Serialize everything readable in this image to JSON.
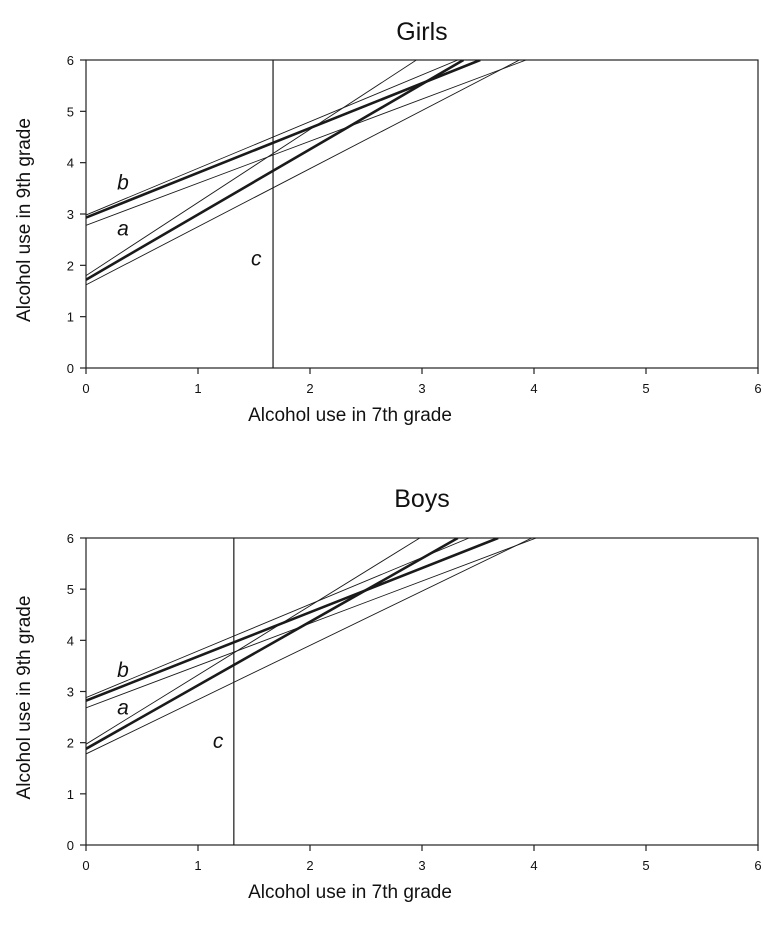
{
  "chart_data": [
    {
      "type": "line",
      "title": "Girls",
      "xlabel": "Alcohol use in 7th grade",
      "ylabel": "Alcohol use in 9th grade",
      "xlim": [
        0,
        6
      ],
      "ylim": [
        0,
        6
      ],
      "xticks": [
        "0",
        "1",
        "2",
        "3",
        "4",
        "5",
        "6"
      ],
      "yticks": [
        "0",
        "1",
        "2",
        "3",
        "4",
        "5",
        "6"
      ],
      "vertical_line": {
        "x": 1.67,
        "label": "c"
      },
      "series": [
        {
          "name": "b",
          "weight": "bold",
          "points": [
            [
              0,
              2.93
            ],
            [
              3.52,
              6.0
            ]
          ]
        },
        {
          "name": "",
          "weight": "thin",
          "points": [
            [
              0,
              2.98
            ],
            [
              3.32,
              6.0
            ]
          ]
        },
        {
          "name": "",
          "weight": "thin",
          "points": [
            [
              0,
              2.78
            ],
            [
              3.93,
              6.0
            ]
          ]
        },
        {
          "name": "a",
          "weight": "bold",
          "points": [
            [
              0,
              1.72
            ],
            [
              3.37,
              6.0
            ]
          ]
        },
        {
          "name": "",
          "weight": "thin",
          "points": [
            [
              0,
              1.8
            ],
            [
              2.95,
              6.0
            ]
          ]
        },
        {
          "name": "",
          "weight": "thin",
          "points": [
            [
              0,
              1.62
            ],
            [
              3.87,
              6.0
            ]
          ]
        }
      ],
      "annotations": [
        {
          "text": "b",
          "x": 0.33,
          "y": 3.48
        },
        {
          "text": "a",
          "x": 0.33,
          "y": 2.58
        },
        {
          "text": "c",
          "x": 1.52,
          "y": 2.0
        }
      ]
    },
    {
      "type": "line",
      "title": "Boys",
      "xlabel": "Alcohol use in 7th grade",
      "ylabel": "Alcohol use in 9th grade",
      "xlim": [
        0,
        6
      ],
      "ylim": [
        0,
        6
      ],
      "xticks": [
        "0",
        "1",
        "2",
        "3",
        "4",
        "5",
        "6"
      ],
      "yticks": [
        "0",
        "1",
        "2",
        "3",
        "4",
        "5",
        "6"
      ],
      "vertical_line": {
        "x": 1.32,
        "label": "c"
      },
      "series": [
        {
          "name": "b",
          "weight": "bold",
          "points": [
            [
              0,
              2.82
            ],
            [
              3.68,
              6.0
            ]
          ]
        },
        {
          "name": "",
          "weight": "thin",
          "points": [
            [
              0,
              2.88
            ],
            [
              3.42,
              6.0
            ]
          ]
        },
        {
          "name": "",
          "weight": "thin",
          "points": [
            [
              0,
              2.68
            ],
            [
              4.02,
              6.0
            ]
          ]
        },
        {
          "name": "a",
          "weight": "bold",
          "points": [
            [
              0,
              1.88
            ],
            [
              3.32,
              6.0
            ]
          ]
        },
        {
          "name": "",
          "weight": "thin",
          "points": [
            [
              0,
              1.97
            ],
            [
              2.98,
              6.0
            ]
          ]
        },
        {
          "name": "",
          "weight": "thin",
          "points": [
            [
              0,
              1.78
            ],
            [
              3.98,
              6.0
            ]
          ]
        }
      ],
      "annotations": [
        {
          "text": "b",
          "x": 0.33,
          "y": 3.28
        },
        {
          "text": "a",
          "x": 0.33,
          "y": 2.55
        },
        {
          "text": "c",
          "x": 1.18,
          "y": 1.9
        }
      ]
    }
  ]
}
